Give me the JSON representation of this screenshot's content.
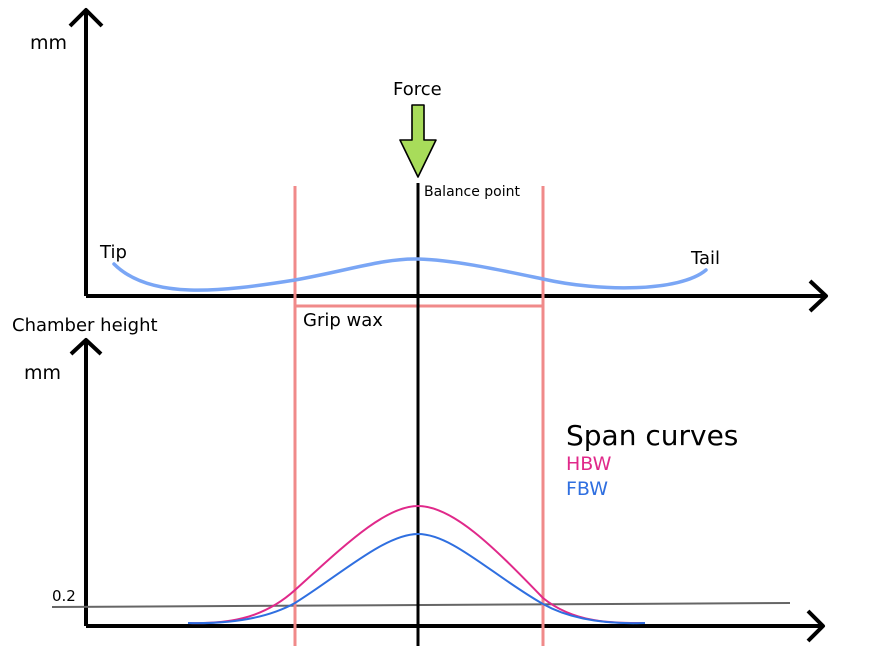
{
  "labels": {
    "top_y_unit": "mm",
    "force": "Force",
    "balance_point": "Balance point",
    "tip": "Tip",
    "tail": "Tail",
    "grip_wax": "Grip wax",
    "bottom_title": "Chamber height",
    "bottom_y_unit": "mm",
    "threshold": "0.2"
  },
  "legend": {
    "title": "Span curves",
    "items": [
      {
        "label": "HBW",
        "color": "#e0298a"
      },
      {
        "label": "FBW",
        "color": "#2f6fe0"
      }
    ]
  },
  "colors": {
    "axis": "#000000",
    "grip_zone": "#f08a8a",
    "ski_profile": "#7aa6f5",
    "force_arrow": "#a8dc5a",
    "threshold_line": "#666666",
    "hbw": "#e0298a",
    "fbw": "#2f6fe0"
  }
}
